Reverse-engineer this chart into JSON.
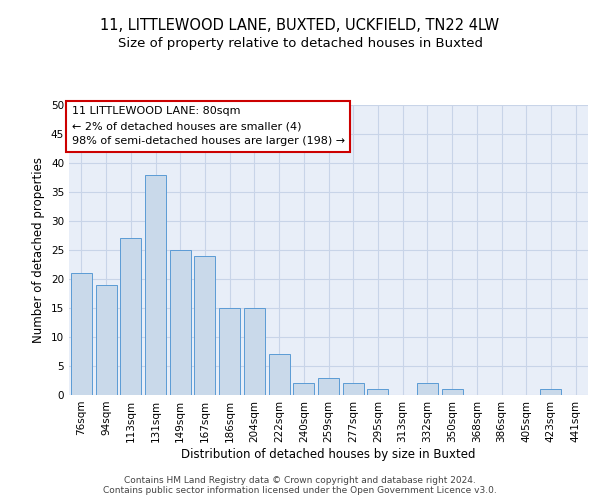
{
  "title_line1": "11, LITTLEWOOD LANE, BUXTED, UCKFIELD, TN22 4LW",
  "title_line2": "Size of property relative to detached houses in Buxted",
  "xlabel": "Distribution of detached houses by size in Buxted",
  "ylabel": "Number of detached properties",
  "categories": [
    "76sqm",
    "94sqm",
    "113sqm",
    "131sqm",
    "149sqm",
    "167sqm",
    "186sqm",
    "204sqm",
    "222sqm",
    "240sqm",
    "259sqm",
    "277sqm",
    "295sqm",
    "313sqm",
    "332sqm",
    "350sqm",
    "368sqm",
    "386sqm",
    "405sqm",
    "423sqm",
    "441sqm"
  ],
  "values": [
    21,
    19,
    27,
    38,
    25,
    24,
    15,
    15,
    7,
    2,
    3,
    2,
    1,
    0,
    2,
    1,
    0,
    0,
    0,
    1,
    0
  ],
  "bar_color": "#c9d9ea",
  "bar_edge_color": "#5b9bd5",
  "annotation_box_text": "11 LITTLEWOOD LANE: 80sqm\n← 2% of detached houses are smaller (4)\n98% of semi-detached houses are larger (198) →",
  "annotation_box_color": "#ffffff",
  "annotation_box_edge_color": "#cc0000",
  "grid_color": "#c8d4e8",
  "background_color": "#e8eef8",
  "ylim": [
    0,
    50
  ],
  "yticks": [
    0,
    5,
    10,
    15,
    20,
    25,
    30,
    35,
    40,
    45,
    50
  ],
  "footnote": "Contains HM Land Registry data © Crown copyright and database right 2024.\nContains public sector information licensed under the Open Government Licence v3.0.",
  "title_fontsize": 10.5,
  "subtitle_fontsize": 9.5,
  "axis_label_fontsize": 8.5,
  "tick_fontsize": 7.5,
  "annotation_fontsize": 8,
  "footnote_fontsize": 6.5
}
